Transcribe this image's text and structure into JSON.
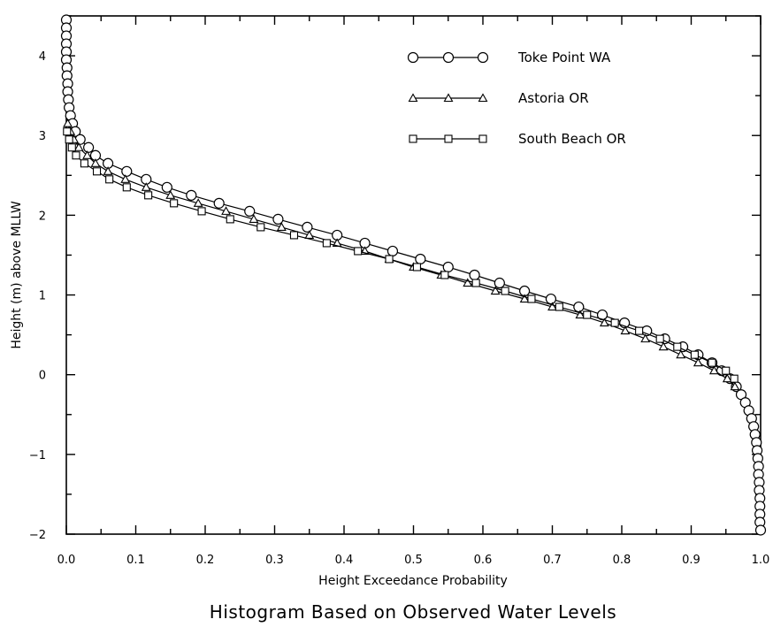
{
  "chart_data": {
    "type": "line",
    "title": "Histogram Based on Observed Water Levels",
    "xlabel": "Height Exceedance Probability",
    "ylabel": "Height (m) above MLLW",
    "xlim": [
      0.0,
      1.0
    ],
    "ylim": [
      -2,
      4.5
    ],
    "x_ticks": [
      "0.0",
      "0.1",
      "0.2",
      "0.3",
      "0.4",
      "0.5",
      "0.6",
      "0.7",
      "0.8",
      "0.9",
      "1.0"
    ],
    "y_ticks": [
      "−2",
      "−1",
      "0",
      "1",
      "2",
      "3",
      "4"
    ],
    "grid": false,
    "legend_position": "top-right",
    "series": [
      {
        "name": "Toke Point WA",
        "marker": "circle",
        "points": [
          [
            0.0,
            4.45
          ],
          [
            0.0,
            4.35
          ],
          [
            0.0,
            4.25
          ],
          [
            0.0,
            4.15
          ],
          [
            0.0,
            4.05
          ],
          [
            0.0,
            3.95
          ],
          [
            0.001,
            3.85
          ],
          [
            0.001,
            3.75
          ],
          [
            0.002,
            3.65
          ],
          [
            0.002,
            3.55
          ],
          [
            0.003,
            3.45
          ],
          [
            0.004,
            3.35
          ],
          [
            0.006,
            3.25
          ],
          [
            0.009,
            3.15
          ],
          [
            0.013,
            3.05
          ],
          [
            0.02,
            2.95
          ],
          [
            0.032,
            2.85
          ],
          [
            0.042,
            2.75
          ],
          [
            0.06,
            2.65
          ],
          [
            0.087,
            2.55
          ],
          [
            0.115,
            2.45
          ],
          [
            0.145,
            2.35
          ],
          [
            0.18,
            2.25
          ],
          [
            0.22,
            2.15
          ],
          [
            0.264,
            2.05
          ],
          [
            0.305,
            1.95
          ],
          [
            0.347,
            1.85
          ],
          [
            0.39,
            1.75
          ],
          [
            0.43,
            1.65
          ],
          [
            0.47,
            1.55
          ],
          [
            0.51,
            1.45
          ],
          [
            0.55,
            1.35
          ],
          [
            0.588,
            1.25
          ],
          [
            0.624,
            1.15
          ],
          [
            0.66,
            1.05
          ],
          [
            0.698,
            0.95
          ],
          [
            0.738,
            0.85
          ],
          [
            0.772,
            0.75
          ],
          [
            0.804,
            0.65
          ],
          [
            0.836,
            0.55
          ],
          [
            0.862,
            0.45
          ],
          [
            0.888,
            0.35
          ],
          [
            0.91,
            0.25
          ],
          [
            0.93,
            0.15
          ],
          [
            0.944,
            0.05
          ],
          [
            0.956,
            -0.05
          ],
          [
            0.965,
            -0.15
          ],
          [
            0.972,
            -0.25
          ],
          [
            0.978,
            -0.35
          ],
          [
            0.983,
            -0.45
          ],
          [
            0.987,
            -0.55
          ],
          [
            0.99,
            -0.65
          ],
          [
            0.992,
            -0.75
          ],
          [
            0.994,
            -0.85
          ],
          [
            0.995,
            -0.95
          ],
          [
            0.996,
            -1.05
          ],
          [
            0.997,
            -1.15
          ],
          [
            0.997,
            -1.25
          ],
          [
            0.998,
            -1.35
          ],
          [
            0.998,
            -1.45
          ],
          [
            0.999,
            -1.55
          ],
          [
            0.999,
            -1.65
          ],
          [
            0.999,
            -1.75
          ],
          [
            0.999,
            -1.85
          ],
          [
            1.0,
            -1.95
          ]
        ]
      },
      {
        "name": "Astoria OR",
        "marker": "triangle",
        "points": [
          [
            0.002,
            3.15
          ],
          [
            0.006,
            3.05
          ],
          [
            0.011,
            2.95
          ],
          [
            0.018,
            2.85
          ],
          [
            0.03,
            2.75
          ],
          [
            0.042,
            2.65
          ],
          [
            0.06,
            2.55
          ],
          [
            0.085,
            2.45
          ],
          [
            0.115,
            2.35
          ],
          [
            0.15,
            2.25
          ],
          [
            0.19,
            2.15
          ],
          [
            0.23,
            2.05
          ],
          [
            0.27,
            1.95
          ],
          [
            0.31,
            1.85
          ],
          [
            0.35,
            1.75
          ],
          [
            0.39,
            1.65
          ],
          [
            0.43,
            1.55
          ],
          [
            0.465,
            1.45
          ],
          [
            0.5,
            1.35
          ],
          [
            0.54,
            1.25
          ],
          [
            0.578,
            1.15
          ],
          [
            0.618,
            1.05
          ],
          [
            0.66,
            0.95
          ],
          [
            0.7,
            0.85
          ],
          [
            0.74,
            0.75
          ],
          [
            0.775,
            0.65
          ],
          [
            0.805,
            0.55
          ],
          [
            0.834,
            0.45
          ],
          [
            0.86,
            0.35
          ],
          [
            0.885,
            0.25
          ],
          [
            0.91,
            0.15
          ],
          [
            0.933,
            0.05
          ],
          [
            0.952,
            -0.05
          ],
          [
            0.963,
            -0.15
          ]
        ]
      },
      {
        "name": "South Beach OR",
        "marker": "square",
        "points": [
          [
            0.001,
            3.05
          ],
          [
            0.004,
            2.95
          ],
          [
            0.008,
            2.85
          ],
          [
            0.014,
            2.75
          ],
          [
            0.026,
            2.65
          ],
          [
            0.044,
            2.55
          ],
          [
            0.062,
            2.45
          ],
          [
            0.087,
            2.35
          ],
          [
            0.118,
            2.25
          ],
          [
            0.155,
            2.15
          ],
          [
            0.195,
            2.05
          ],
          [
            0.236,
            1.95
          ],
          [
            0.28,
            1.85
          ],
          [
            0.328,
            1.75
          ],
          [
            0.375,
            1.65
          ],
          [
            0.42,
            1.55
          ],
          [
            0.465,
            1.45
          ],
          [
            0.505,
            1.35
          ],
          [
            0.545,
            1.25
          ],
          [
            0.59,
            1.15
          ],
          [
            0.632,
            1.05
          ],
          [
            0.67,
            0.95
          ],
          [
            0.71,
            0.85
          ],
          [
            0.75,
            0.75
          ],
          [
            0.79,
            0.65
          ],
          [
            0.825,
            0.55
          ],
          [
            0.855,
            0.45
          ],
          [
            0.88,
            0.35
          ],
          [
            0.905,
            0.25
          ],
          [
            0.93,
            0.15
          ],
          [
            0.95,
            0.05
          ],
          [
            0.962,
            -0.05
          ]
        ]
      }
    ]
  }
}
